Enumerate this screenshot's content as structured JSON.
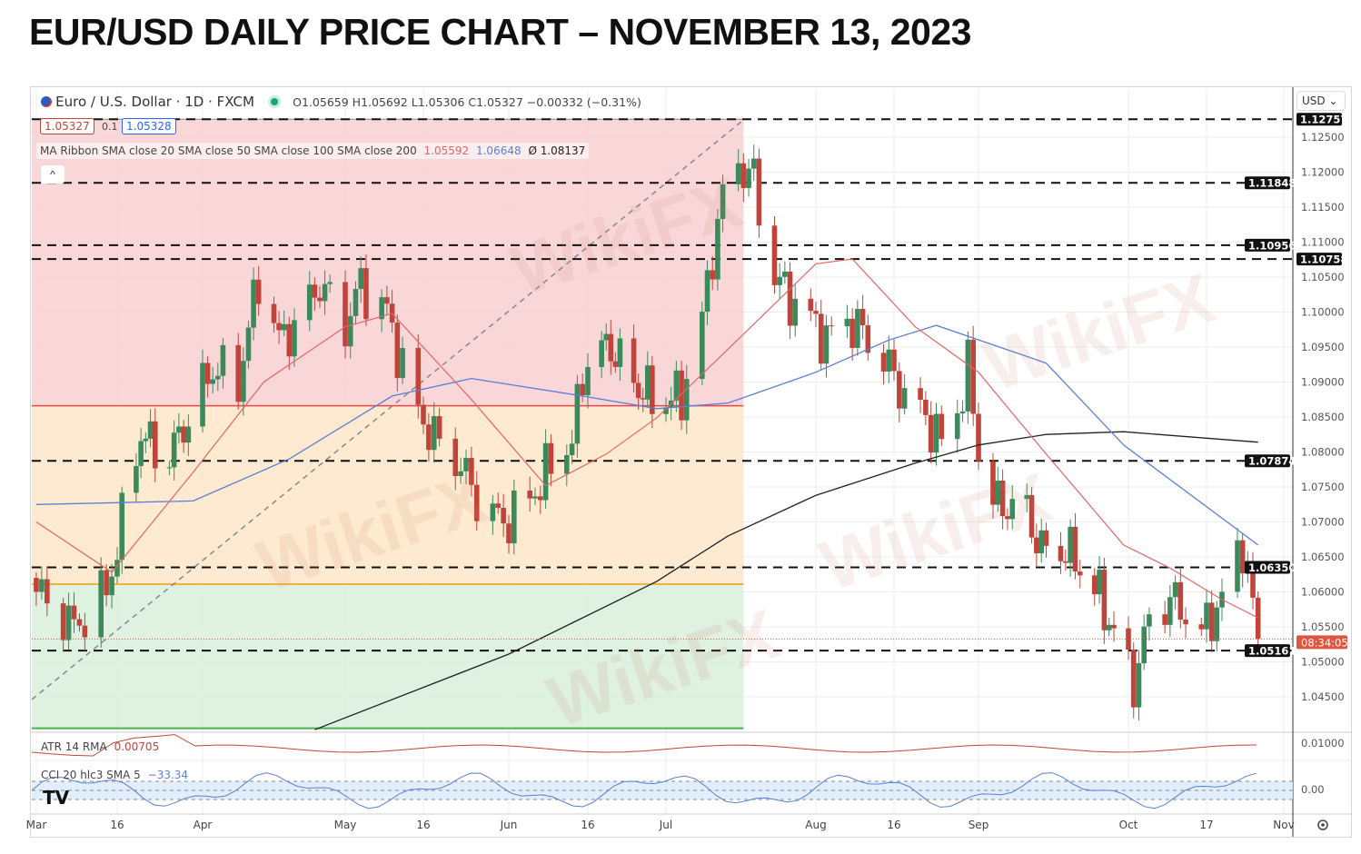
{
  "title": "EUR/USD DAILY PRICE CHART – NOVEMBER 13, 2023",
  "watermark": "WikiFX",
  "header": {
    "symbol": "Euro / U.S. Dollar · 1D · FXCM",
    "ohlc": "O1.05659 H1.05692 L1.05306 C1.05327 −0.00332 (−0.31%)",
    "bid": "1.05327",
    "spread": "0.1",
    "ask": "1.05328",
    "ma_label": "MA Ribbon SMA close 20 SMA close 50 SMA close 100 SMA close 200",
    "ma20_value": "1.05592",
    "ma50_value": "1.06648",
    "ma_other_value": "Ø 1.08137",
    "collapse": "^",
    "currency": "USD ⌄"
  },
  "colors": {
    "up": "#3b8a5c",
    "down": "#c1443a",
    "sma20": "#e06666",
    "sma50": "#5b7fd6",
    "sma200": "#222222",
    "fib_red": "#f8d0d2",
    "fib_orange": "#fde6c8",
    "fib_green": "#d9eedb",
    "price_tag": "#e0553f"
  },
  "chart_data": {
    "type": "candlestick",
    "title": "EUR/USD Daily",
    "ylim": [
      1.0405,
      1.1312
    ],
    "y_ticks": [
      "1.12500",
      "1.12000",
      "1.11500",
      "1.11000",
      "1.10500",
      "1.10000",
      "1.09500",
      "1.09000",
      "1.08500",
      "1.08000",
      "1.07500",
      "1.07000",
      "1.06500",
      "1.06000",
      "1.05500",
      "1.05000",
      "1.04500"
    ],
    "x_ticks": [
      {
        "date": "2023-03-01",
        "label": "Mar"
      },
      {
        "date": "2023-03-16",
        "label": "16"
      },
      {
        "date": "2023-04-03",
        "label": "Apr"
      },
      {
        "date": "2023-05-01",
        "label": "May"
      },
      {
        "date": "2023-05-16",
        "label": "16"
      },
      {
        "date": "2023-06-01",
        "label": "Jun"
      },
      {
        "date": "2023-06-16",
        "label": "16"
      },
      {
        "date": "2023-07-03",
        "label": "Jul"
      },
      {
        "date": "2023-08-01",
        "label": "Aug"
      },
      {
        "date": "2023-08-16",
        "label": "16"
      },
      {
        "date": "2023-09-01",
        "label": "Sep"
      },
      {
        "date": "2023-10-02",
        "label": "Oct"
      },
      {
        "date": "2023-10-17",
        "label": "17"
      },
      {
        "date": "2023-11-01",
        "label": "Nov"
      }
    ],
    "close_anchors": [
      [
        "2023-03-01",
        1.06
      ],
      [
        "2023-03-08",
        1.055
      ],
      [
        "2023-03-14",
        1.06
      ],
      [
        "2023-03-21",
        1.083
      ],
      [
        "2023-03-26",
        1.078
      ],
      [
        "2023-03-31",
        1.085
      ],
      [
        "2023-04-05",
        1.092
      ],
      [
        "2023-04-10",
        1.09
      ],
      [
        "2023-04-14",
        1.105
      ],
      [
        "2023-04-18",
        1.096
      ],
      [
        "2023-04-21",
        1.098
      ],
      [
        "2023-04-26",
        1.104
      ],
      [
        "2023-05-01",
        1.098
      ],
      [
        "2023-05-04",
        1.104
      ],
      [
        "2023-05-09",
        1.1
      ],
      [
        "2023-05-14",
        1.087
      ],
      [
        "2023-05-18",
        1.082
      ],
      [
        "2023-05-23",
        1.078
      ],
      [
        "2023-05-27",
        1.072
      ],
      [
        "2023-05-31",
        1.07
      ],
      [
        "2023-06-04",
        1.072
      ],
      [
        "2023-06-08",
        1.077
      ],
      [
        "2023-06-13",
        1.082
      ],
      [
        "2023-06-16",
        1.094
      ],
      [
        "2023-06-21",
        1.095
      ],
      [
        "2023-06-26",
        1.09
      ],
      [
        "2023-07-01",
        1.087
      ],
      [
        "2023-07-06",
        1.088
      ],
      [
        "2023-07-10",
        1.099
      ],
      [
        "2023-07-13",
        1.113
      ],
      [
        "2023-07-16",
        1.122
      ],
      [
        "2023-07-20",
        1.119
      ],
      [
        "2023-07-23",
        1.106
      ],
      [
        "2023-07-27",
        1.102
      ],
      [
        "2023-07-31",
        1.099
      ],
      [
        "2023-08-03",
        1.096
      ],
      [
        "2023-08-07",
        1.099
      ],
      [
        "2023-08-10",
        1.097
      ],
      [
        "2023-08-15",
        1.092
      ],
      [
        "2023-08-19",
        1.087
      ],
      [
        "2023-08-22",
        1.085
      ],
      [
        "2023-08-26",
        1.08
      ],
      [
        "2023-08-30",
        1.092
      ],
      [
        "2023-09-01",
        1.08
      ],
      [
        "2023-09-05",
        1.072
      ],
      [
        "2023-09-10",
        1.073
      ],
      [
        "2023-09-14",
        1.066
      ],
      [
        "2023-09-19",
        1.066
      ],
      [
        "2023-09-24",
        1.062
      ],
      [
        "2023-09-28",
        1.056
      ],
      [
        "2023-10-03",
        1.047
      ],
      [
        "2023-10-06",
        1.056
      ],
      [
        "2023-10-10",
        1.059
      ],
      [
        "2023-10-13",
        1.057
      ],
      [
        "2023-10-16",
        1.054
      ],
      [
        "2023-10-20",
        1.059
      ],
      [
        "2023-10-24",
        1.067
      ],
      [
        "2023-10-27",
        1.0533
      ]
    ],
    "sma20": [
      [
        "2023-03-01",
        1.07
      ],
      [
        "2023-03-15",
        1.0628
      ],
      [
        "2023-04-01",
        1.0771
      ],
      [
        "2023-04-15",
        1.09
      ],
      [
        "2023-05-01",
        1.0979
      ],
      [
        "2023-05-10",
        1.0998
      ],
      [
        "2023-05-25",
        1.0875
      ],
      [
        "2023-06-08",
        1.0752
      ],
      [
        "2023-06-20",
        1.0797
      ],
      [
        "2023-07-01",
        1.0849
      ],
      [
        "2023-07-15",
        1.0947
      ],
      [
        "2023-08-01",
        1.1069
      ],
      [
        "2023-08-08",
        1.1076
      ],
      [
        "2023-08-20",
        1.0979
      ],
      [
        "2023-09-01",
        1.0914
      ],
      [
        "2023-09-15",
        1.0797
      ],
      [
        "2023-10-01",
        1.0667
      ],
      [
        "2023-10-10",
        1.0634
      ],
      [
        "2023-10-20",
        1.0589
      ],
      [
        "2023-10-27",
        1.0563
      ]
    ],
    "sma50": [
      [
        "2023-03-01",
        1.0725
      ],
      [
        "2023-04-01",
        1.073
      ],
      [
        "2023-04-20",
        1.079
      ],
      [
        "2023-05-10",
        1.088
      ],
      [
        "2023-05-25",
        1.0905
      ],
      [
        "2023-06-15",
        1.088
      ],
      [
        "2023-07-01",
        1.0862
      ],
      [
        "2023-07-15",
        1.087
      ],
      [
        "2023-08-01",
        1.0914
      ],
      [
        "2023-08-15",
        1.096
      ],
      [
        "2023-08-24",
        1.0981
      ],
      [
        "2023-09-15",
        1.0927
      ],
      [
        "2023-10-01",
        1.081
      ],
      [
        "2023-10-27",
        1.0667
      ]
    ],
    "sma200": [
      [
        "2023-04-25",
        1.0403
      ],
      [
        "2023-06-01",
        1.0511
      ],
      [
        "2023-07-01",
        1.0615
      ],
      [
        "2023-07-15",
        1.068
      ],
      [
        "2023-08-01",
        1.0738
      ],
      [
        "2023-08-20",
        1.0784
      ],
      [
        "2023-09-01",
        1.081
      ],
      [
        "2023-09-15",
        1.0825
      ],
      [
        "2023-10-01",
        1.0829
      ],
      [
        "2023-10-27",
        1.0814
      ]
    ],
    "levels": [
      "1.12757",
      "1.11848",
      "1.10956",
      "1.10758",
      "1.07874",
      "1.06350",
      "1.05161"
    ],
    "fib_zones": {
      "start": "2023-03-01",
      "end": "2023-07-18",
      "red": [
        1.12757,
        1.0866
      ],
      "orange": [
        1.0866,
        1.0611
      ],
      "green": [
        1.0611,
        1.0405
      ]
    },
    "last_price": "1.05327",
    "countdown": "08:34:05",
    "atr": {
      "label": "ATR 14 RMA",
      "value": "0.00705",
      "axis_label": "0.01000"
    },
    "cci": {
      "label": "CCI 20 hlc3 SMA 5",
      "value": "−33.34",
      "axis_label": "0.00"
    }
  }
}
